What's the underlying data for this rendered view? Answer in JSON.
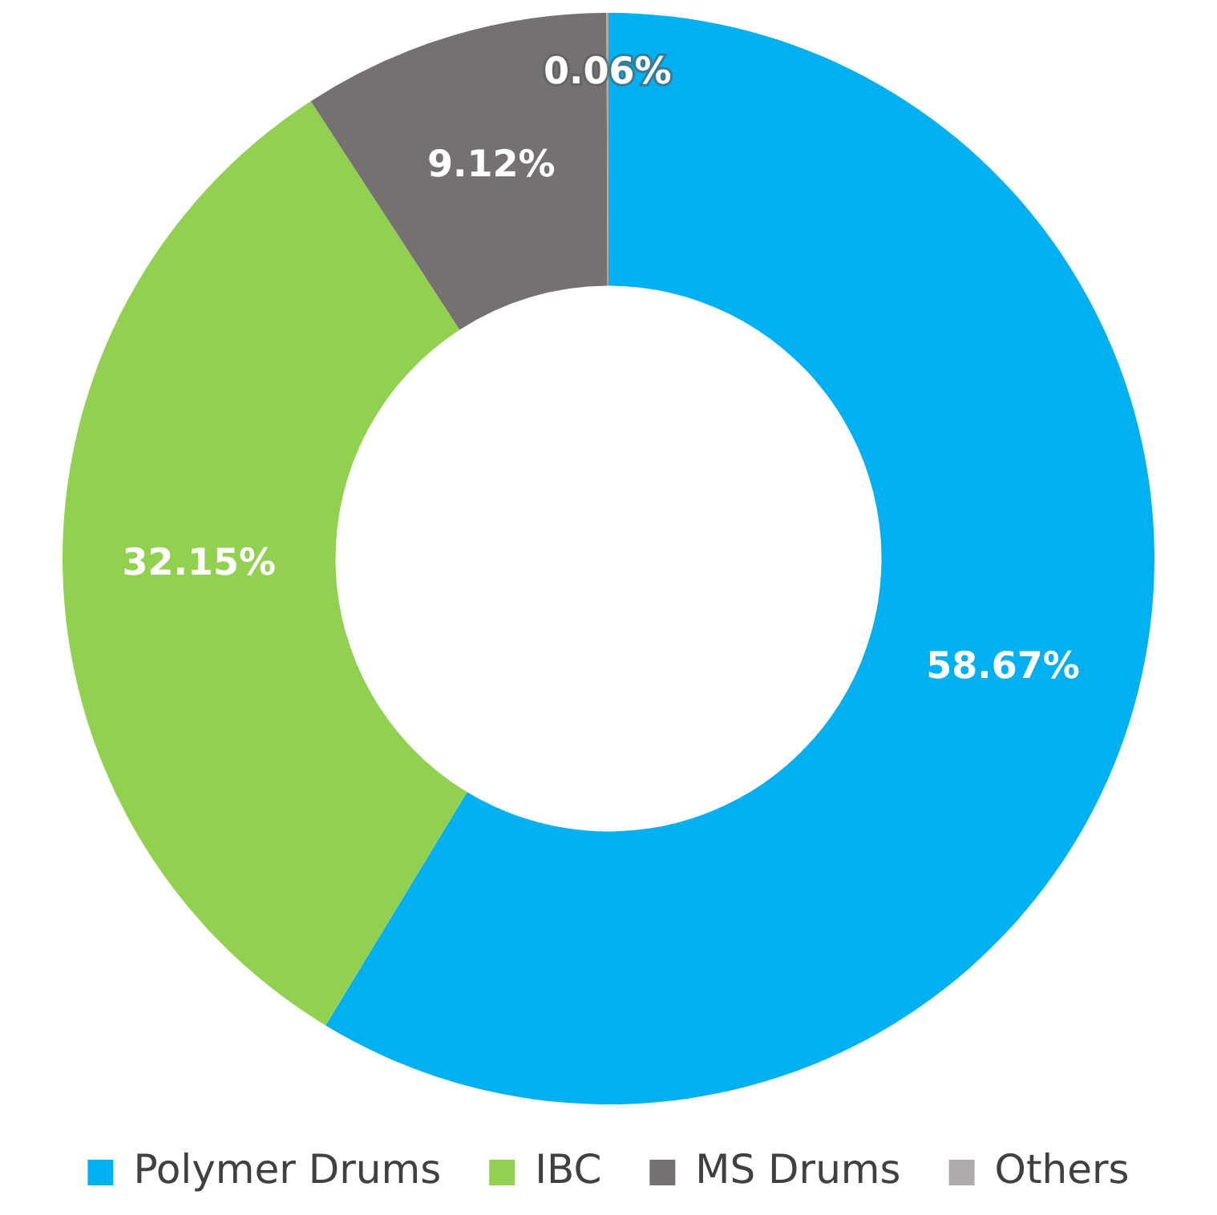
{
  "chart_data": {
    "type": "donut",
    "categories": [
      "Polymer Drums",
      "IBC",
      "MS Drums",
      "Others"
    ],
    "values": [
      58.67,
      32.15,
      9.12,
      0.06
    ],
    "colors": [
      "#00b0f0",
      "#92d050",
      "#767171",
      "#aeaaaa"
    ],
    "value_labels": [
      "58.67%",
      "32.15%",
      "9.12%",
      "0.06%"
    ],
    "legend": "bottom"
  }
}
